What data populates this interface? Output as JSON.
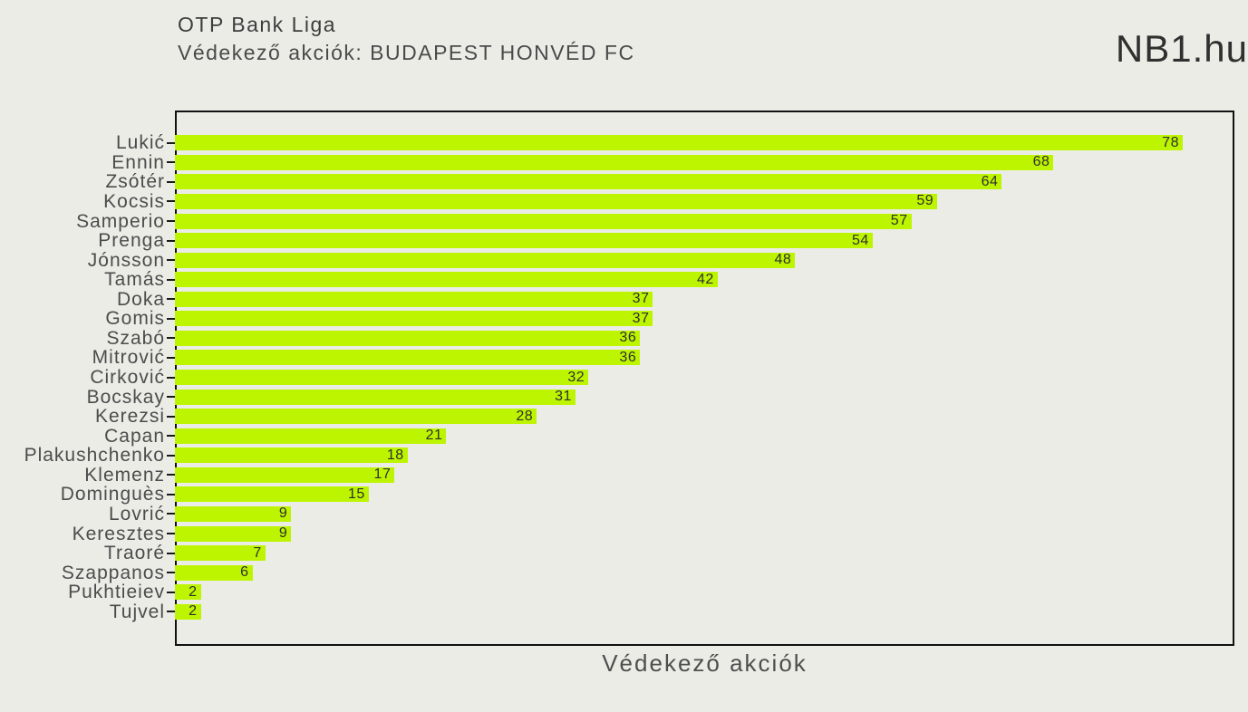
{
  "header": {
    "title": "OTP Bank Liga",
    "subtitle": "Védekező akciók: BUDAPEST HONVÉD FC",
    "brand": "NB1.hu"
  },
  "chart_data": {
    "type": "bar",
    "orientation": "horizontal",
    "title": "Védekező akciók: BUDAPEST HONVÉD FC",
    "categories": [
      "Lukić",
      "Ennin",
      "Zsótér",
      "Kocsis",
      "Samperio",
      "Prenga",
      "Jónsson",
      "Tamás",
      "Doka",
      "Gomis",
      "Szabó",
      "Mitrović",
      "Cirković",
      "Bocskay",
      "Kerezsi",
      "Capan",
      "Plakushchenko",
      "Klemenz",
      "Dominguès",
      "Lovrić",
      "Keresztes",
      "Traoré",
      "Szappanos",
      "Pukhtieiev",
      "Tujvel"
    ],
    "values": [
      78,
      68,
      64,
      59,
      57,
      54,
      48,
      42,
      37,
      37,
      36,
      36,
      32,
      31,
      28,
      21,
      18,
      17,
      15,
      9,
      9,
      7,
      6,
      2,
      2
    ],
    "xlabel": "Védekező akciók",
    "ylabel": "",
    "xlim": [
      0,
      82
    ],
    "grid": false,
    "legend": false,
    "value_labels": "inside-end",
    "bar_color": "#bdf500",
    "background_color": "#ecece7",
    "frame_color": "#111111"
  }
}
